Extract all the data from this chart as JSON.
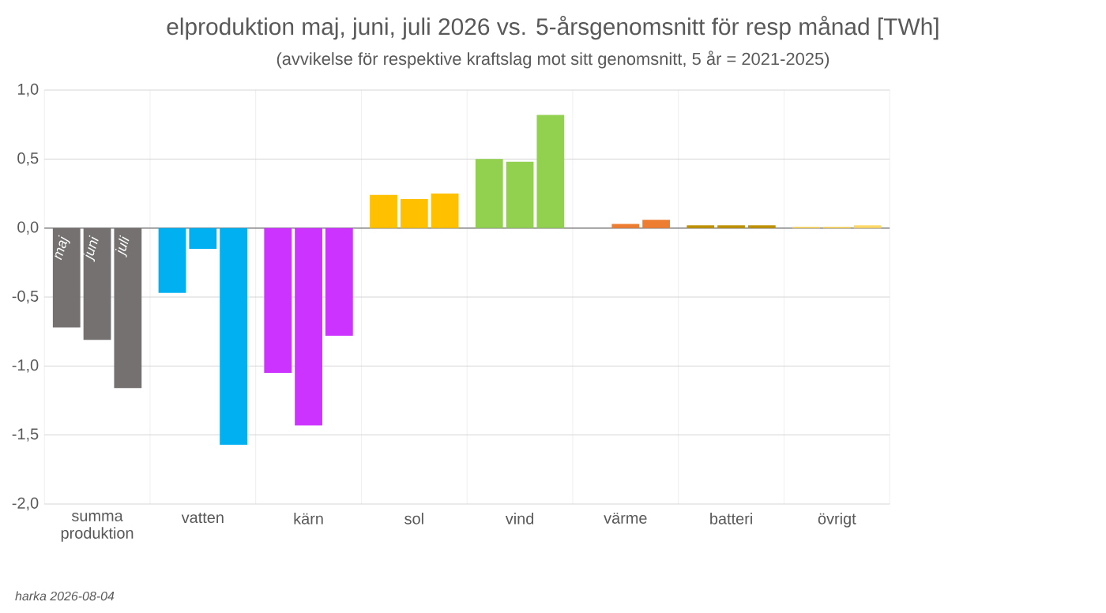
{
  "chart_data": {
    "type": "bar",
    "title": "elproduktion maj, juni, juli 2026 vs. 5-årsgenomsnitt för resp månad [TWh]",
    "subtitle": "(avvikelse för respektive kraftslag mot sitt genomsnitt, 5 år = 2021-2025)",
    "categories": [
      "summa produktion",
      "vatten",
      "kärn",
      "sol",
      "vind",
      "värme",
      "batteri",
      "övrigt"
    ],
    "series": [
      {
        "name": "maj",
        "colors": [
          "#757171",
          "#00b0f0",
          "#cc33ff",
          "#ffc000",
          "#92d050",
          "#ed7d31",
          "#bf9000",
          "#ffd966"
        ],
        "values": [
          -0.72,
          -0.47,
          -1.05,
          0.24,
          0.5,
          null,
          0.02,
          0.01
        ]
      },
      {
        "name": "juni",
        "colors": [
          "#757171",
          "#00b0f0",
          "#cc33ff",
          "#ffc000",
          "#92d050",
          "#ed7d31",
          "#bf9000",
          "#ffd966"
        ],
        "values": [
          -0.81,
          -0.15,
          -1.43,
          0.21,
          0.48,
          0.03,
          0.02,
          0.01
        ]
      },
      {
        "name": "juli",
        "colors": [
          "#757171",
          "#00b0f0",
          "#cc33ff",
          "#ffc000",
          "#92d050",
          "#ed7d31",
          "#bf9000",
          "#ffd966"
        ],
        "values": [
          -1.16,
          -1.57,
          -0.78,
          0.25,
          0.82,
          0.06,
          0.02,
          0.02
        ]
      }
    ],
    "ylim": [
      -2.0,
      1.0
    ],
    "yticks": [
      {
        "value": -2.0,
        "label": "-2,0"
      },
      {
        "value": -1.5,
        "label": "-1,5"
      },
      {
        "value": -1.0,
        "label": "-1,0"
      },
      {
        "value": -0.5,
        "label": "-0,5"
      },
      {
        "value": 0.0,
        "label": "0,0"
      },
      {
        "value": 0.5,
        "label": "0,5"
      },
      {
        "value": 1.0,
        "label": "1,0"
      }
    ],
    "grid": true,
    "annotations": [
      "harka 2026-08-04"
    ]
  }
}
